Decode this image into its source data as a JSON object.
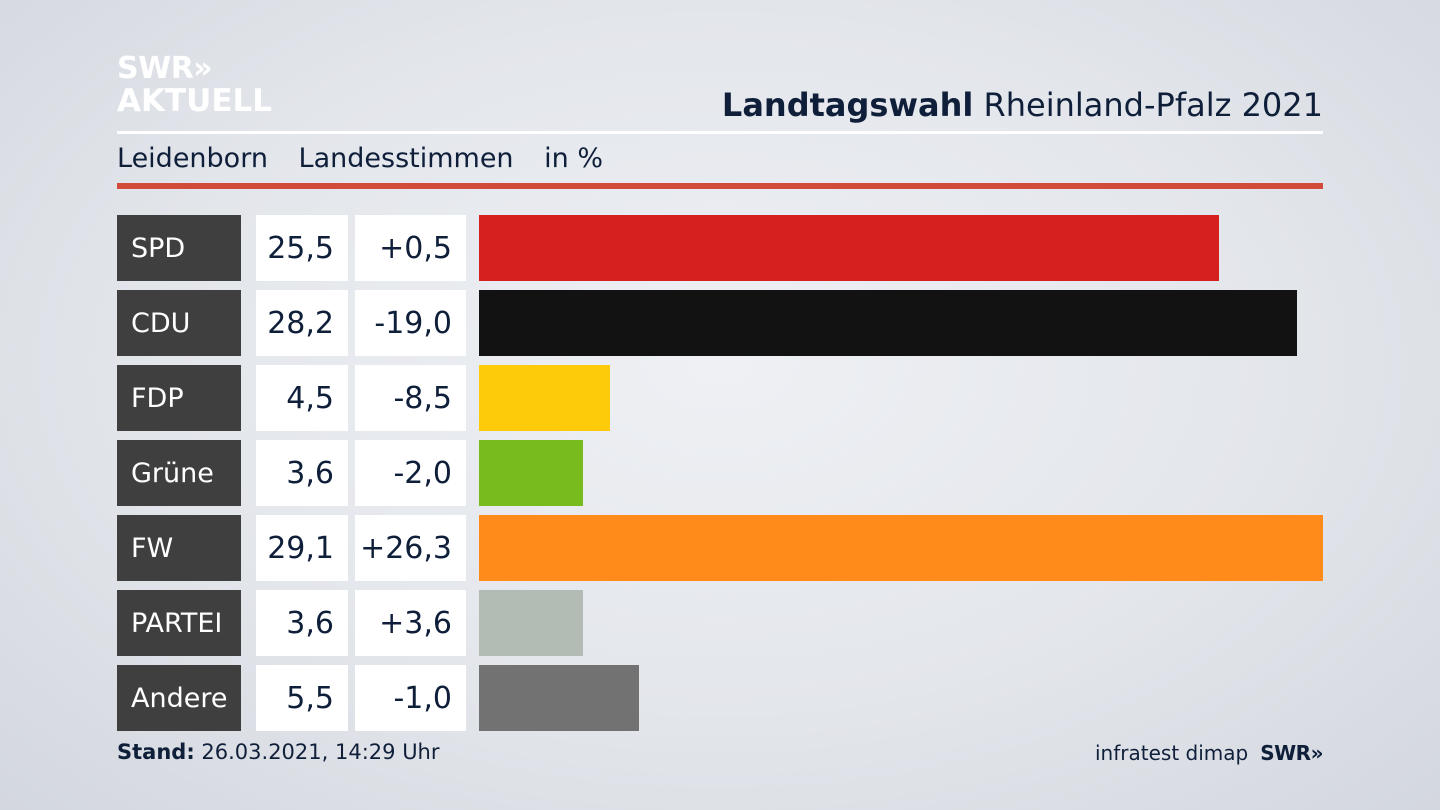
{
  "brand": {
    "logo_line1": "SWR»",
    "logo_line2": "AKTUELL"
  },
  "header": {
    "title_bold": "Landtagswahl",
    "title_rest": "Rheinland-Pfalz 2021"
  },
  "subheader": {
    "place": "Leidenborn",
    "metric": "Landesstimmen",
    "unit": "in %"
  },
  "colors": {
    "accent_rule": "#d24a3a",
    "label_bg": "#3f3f3f"
  },
  "chart_data": {
    "type": "bar",
    "orientation": "horizontal",
    "categories": [
      "SPD",
      "CDU",
      "FDP",
      "Grüne",
      "FW",
      "PARTEI",
      "Andere"
    ],
    "values": [
      25.5,
      28.2,
      4.5,
      3.6,
      29.1,
      3.6,
      5.5
    ],
    "value_labels": [
      "25,5",
      "28,2",
      "4,5",
      "3,6",
      "29,1",
      "3,6",
      "5,5"
    ],
    "diff_labels": [
      "+0,5",
      "-19,0",
      "-8,5",
      "-2,0",
      "+26,3",
      "+3,6",
      "-1,0"
    ],
    "bar_colors": [
      "#d61f1f",
      "#121212",
      "#fecb0a",
      "#78bb1e",
      "#fe8b1a",
      "#b2bbb4",
      "#727272"
    ],
    "xlim": [
      0,
      29.1
    ],
    "grid": false,
    "legend": "none"
  },
  "footer": {
    "stand_label": "Stand:",
    "stand_value": "26.03.2021, 14:29 Uhr",
    "source": "infratest dimap",
    "source_brand": "SWR»"
  }
}
